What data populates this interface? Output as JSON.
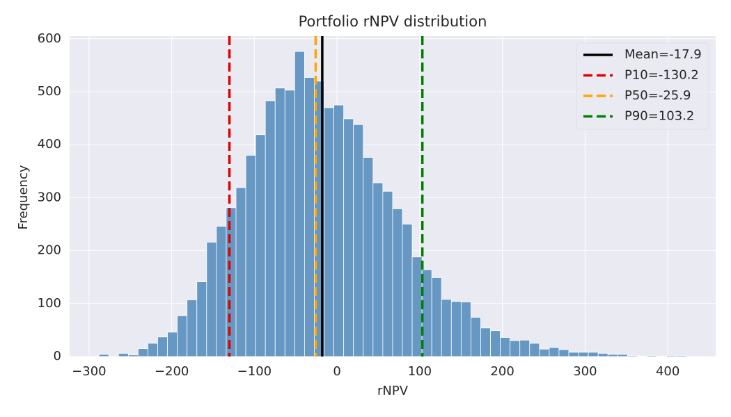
{
  "chart_data": {
    "type": "histogram",
    "title": "Portfolio rNPV distribution",
    "x_label": "rNPV",
    "y_label": "Frequency",
    "bins": [
      -288,
      -276.16,
      -264.32,
      -252.48,
      -240.64,
      -228.8,
      -216.96,
      -205.12,
      -193.28,
      -181.44,
      -169.6,
      -157.76,
      -145.92,
      -134.08,
      -122.24,
      -110.4,
      -98.56,
      -86.72,
      -74.88,
      -63.04,
      -51.2,
      -39.36,
      -27.52,
      -15.68,
      -3.84,
      8,
      19.84,
      31.68,
      43.52,
      55.36,
      67.2,
      79.04,
      90.88,
      102.72,
      114.56,
      126.4,
      138.24,
      150.08,
      161.92,
      173.76,
      185.6,
      197.44,
      209.28,
      221.12,
      232.96,
      244.8,
      256.64,
      268.48,
      280.32,
      292.16,
      304,
      315.84,
      327.68,
      339.52,
      351.36,
      363.2,
      375.04,
      386.88,
      398.72,
      410.56,
      422.4
    ],
    "values": [
      4,
      0,
      6,
      3,
      15,
      25,
      37,
      46,
      77,
      107,
      141,
      216,
      246,
      281,
      319,
      380,
      419,
      483,
      507,
      503,
      576,
      527,
      520,
      470,
      475,
      449,
      438,
      376,
      328,
      312,
      279,
      250,
      188,
      164,
      149,
      108,
      104,
      103,
      74,
      54,
      49,
      36,
      30,
      31,
      25,
      14,
      17,
      13,
      8,
      8,
      8,
      6,
      4,
      4,
      2,
      1,
      2,
      1,
      2,
      2
    ],
    "color": "#6798c3",
    "vlines": [
      {
        "name": "Mean=-17.9",
        "x": -17.9,
        "color": "#000000",
        "style": "solid"
      },
      {
        "name": "P10=-130.2",
        "x": -130.2,
        "color": "#e00000",
        "style": "dashed"
      },
      {
        "name": "P50=-25.9",
        "x": -25.9,
        "color": "#ffa500",
        "style": "dashed"
      },
      {
        "name": "P90=103.2",
        "x": 103.2,
        "color": "#008000",
        "style": "dashed"
      }
    ],
    "xlim": [
      -323.5,
      458
    ],
    "ylim": [
      0,
      605
    ],
    "xticks": [
      {
        "value": -300,
        "label": "−300"
      },
      {
        "value": -200,
        "label": "−200"
      },
      {
        "value": -100,
        "label": "−100"
      },
      0,
      100,
      200,
      300,
      400
    ],
    "yticks": [
      0,
      100,
      200,
      300,
      400,
      500,
      600
    ],
    "grid": true,
    "legend": "upper right"
  }
}
